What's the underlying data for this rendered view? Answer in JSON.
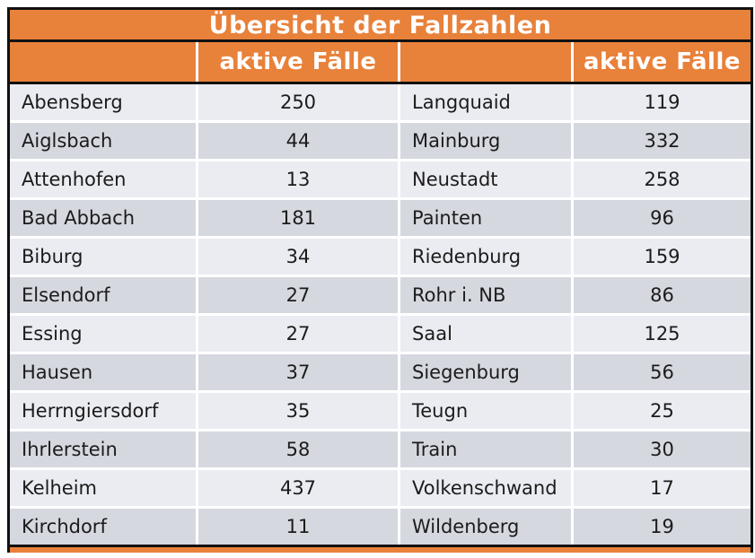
{
  "chart_data": {
    "type": "table",
    "title": "Übersicht der Fallzahlen",
    "columns": [
      "",
      "aktive Fälle",
      "",
      "aktive Fälle"
    ],
    "entries": [
      {
        "municipality": "Abensberg",
        "active_cases": 250
      },
      {
        "municipality": "Aiglsbach",
        "active_cases": 44
      },
      {
        "municipality": "Attenhofen",
        "active_cases": 13
      },
      {
        "municipality": "Bad Abbach",
        "active_cases": 181
      },
      {
        "municipality": "Biburg",
        "active_cases": 34
      },
      {
        "municipality": "Elsendorf",
        "active_cases": 27
      },
      {
        "municipality": "Essing",
        "active_cases": 27
      },
      {
        "municipality": "Hausen",
        "active_cases": 37
      },
      {
        "municipality": "Herrngiersdorf",
        "active_cases": 35
      },
      {
        "municipality": "Ihrlerstein",
        "active_cases": 58
      },
      {
        "municipality": "Kelheim",
        "active_cases": 437
      },
      {
        "municipality": "Kirchdorf",
        "active_cases": 11
      },
      {
        "municipality": "Langquaid",
        "active_cases": 119
      },
      {
        "municipality": "Mainburg",
        "active_cases": 332
      },
      {
        "municipality": "Neustadt",
        "active_cases": 258
      },
      {
        "municipality": "Painten",
        "active_cases": 96
      },
      {
        "municipality": "Riedenburg",
        "active_cases": 159
      },
      {
        "municipality": "Rohr i. NB",
        "active_cases": 86
      },
      {
        "municipality": "Saal",
        "active_cases": 125
      },
      {
        "municipality": "Siegenburg",
        "active_cases": 56
      },
      {
        "municipality": "Teugn",
        "active_cases": 25
      },
      {
        "municipality": "Train",
        "active_cases": 30
      },
      {
        "municipality": "Volkenschwand",
        "active_cases": 17
      },
      {
        "municipality": "Wildenberg",
        "active_cases": 19
      }
    ]
  },
  "table": {
    "title": "Übersicht der Fallzahlen",
    "left_value_header": "aktive Fälle",
    "right_value_header": "aktive Fälle",
    "rows": [
      {
        "left": {
          "name": "Abensberg",
          "value": "250"
        },
        "right": {
          "name": "Langquaid",
          "value": "119"
        }
      },
      {
        "left": {
          "name": "Aiglsbach",
          "value": "44"
        },
        "right": {
          "name": "Mainburg",
          "value": "332"
        }
      },
      {
        "left": {
          "name": "Attenhofen",
          "value": "13"
        },
        "right": {
          "name": "Neustadt",
          "value": "258"
        }
      },
      {
        "left": {
          "name": "Bad Abbach",
          "value": "181"
        },
        "right": {
          "name": "Painten",
          "value": "96"
        }
      },
      {
        "left": {
          "name": "Biburg",
          "value": "34"
        },
        "right": {
          "name": "Riedenburg",
          "value": "159"
        }
      },
      {
        "left": {
          "name": "Elsendorf",
          "value": "27"
        },
        "right": {
          "name": "Rohr i. NB",
          "value": "86"
        }
      },
      {
        "left": {
          "name": "Essing",
          "value": "27"
        },
        "right": {
          "name": "Saal",
          "value": "125"
        }
      },
      {
        "left": {
          "name": "Hausen",
          "value": "37"
        },
        "right": {
          "name": "Siegenburg",
          "value": "56"
        }
      },
      {
        "left": {
          "name": "Herrngiersdorf",
          "value": "35"
        },
        "right": {
          "name": "Teugn",
          "value": "25"
        }
      },
      {
        "left": {
          "name": "Ihrlerstein",
          "value": "58"
        },
        "right": {
          "name": "Train",
          "value": "30"
        }
      },
      {
        "left": {
          "name": "Kelheim",
          "value": "437"
        },
        "right": {
          "name": "Volkenschwand",
          "value": "17"
        }
      },
      {
        "left": {
          "name": "Kirchdorf",
          "value": "11"
        },
        "right": {
          "name": "Wildenberg",
          "value": "19"
        }
      }
    ]
  },
  "colors": {
    "accent_orange": "#E8813A",
    "row_light": "#EBECF1",
    "row_dark": "#D6D8E0",
    "border_black": "#111111",
    "header_text": "#FFFFFF",
    "body_text": "#1B1B1B"
  }
}
